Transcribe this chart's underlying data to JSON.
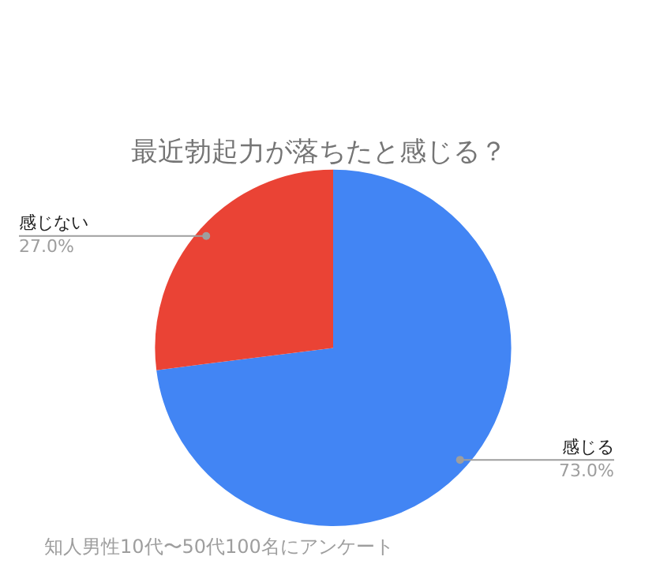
{
  "chart_data": {
    "type": "pie",
    "title": "最近勃起力が落ちたと感じる？",
    "categories": [
      "感じる",
      "感じない"
    ],
    "values": [
      73,
      27
    ],
    "value_labels": [
      "73.0%",
      "27.0%"
    ],
    "colors": [
      "#4285f4",
      "#ea4335"
    ],
    "annotations": [
      "知人男性10代〜50代100名にアンケート"
    ],
    "legend": false
  }
}
